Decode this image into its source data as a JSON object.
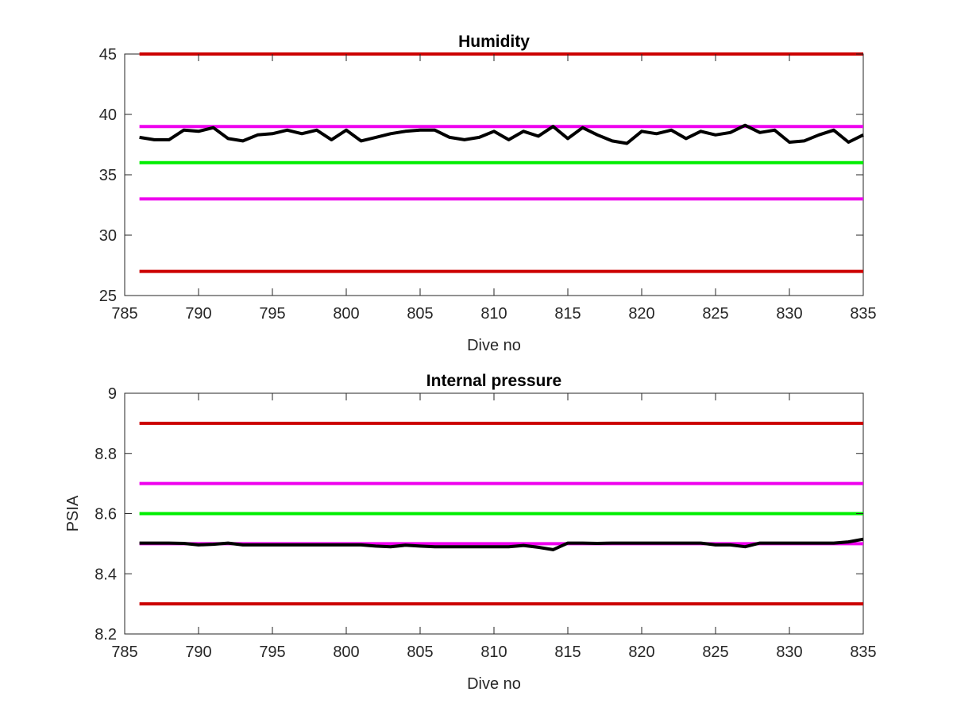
{
  "chart_data": [
    {
      "type": "line",
      "title": "Humidity",
      "xlabel": "Dive no",
      "ylabel": "",
      "xlim": [
        785,
        835
      ],
      "ylim": [
        25,
        45
      ],
      "xticks": [
        785,
        790,
        795,
        800,
        805,
        810,
        815,
        820,
        825,
        830,
        835
      ],
      "yticks": [
        25,
        30,
        35,
        40,
        45
      ],
      "grid": false,
      "threshold_lines": [
        {
          "y": 45,
          "color": "#cc0000",
          "x_range": [
            786,
            835
          ]
        },
        {
          "y": 39,
          "color": "#ee00ee",
          "x_range": [
            786,
            835
          ]
        },
        {
          "y": 36,
          "color": "#00ee00",
          "x_range": [
            786,
            835
          ]
        },
        {
          "y": 33,
          "color": "#ee00ee",
          "x_range": [
            786,
            835
          ]
        },
        {
          "y": 27,
          "color": "#cc0000",
          "x_range": [
            786,
            835
          ]
        }
      ],
      "series": [
        {
          "color": "#000000",
          "x": [
            786,
            787,
            788,
            789,
            790,
            791,
            792,
            793,
            794,
            795,
            796,
            797,
            798,
            799,
            800,
            801,
            802,
            803,
            804,
            805,
            806,
            807,
            808,
            809,
            810,
            811,
            812,
            813,
            814,
            815,
            816,
            817,
            818,
            819,
            820,
            821,
            822,
            823,
            824,
            825,
            826,
            827,
            828,
            829,
            830,
            831,
            832,
            833,
            834,
            835
          ],
          "values": [
            38.1,
            37.9,
            37.9,
            38.7,
            38.6,
            38.9,
            38.0,
            37.8,
            38.3,
            38.4,
            38.7,
            38.4,
            38.7,
            37.9,
            38.7,
            37.8,
            38.1,
            38.4,
            38.6,
            38.7,
            38.7,
            38.1,
            37.9,
            38.1,
            38.6,
            37.9,
            38.6,
            38.2,
            39.0,
            38.0,
            38.9,
            38.3,
            37.8,
            37.6,
            38.6,
            38.4,
            38.7,
            38.0,
            38.6,
            38.3,
            38.5,
            39.1,
            38.5,
            38.7,
            37.7,
            37.8,
            38.3,
            38.7,
            37.7,
            38.3
          ]
        }
      ]
    },
    {
      "type": "line",
      "title": "Internal pressure",
      "xlabel": "Dive no",
      "ylabel": "PSIA",
      "xlim": [
        785,
        835
      ],
      "ylim": [
        8.2,
        9
      ],
      "xticks": [
        785,
        790,
        795,
        800,
        805,
        810,
        815,
        820,
        825,
        830,
        835
      ],
      "yticks": [
        8.2,
        8.4,
        8.6,
        8.8,
        9
      ],
      "grid": false,
      "threshold_lines": [
        {
          "y": 8.9,
          "color": "#cc0000",
          "x_range": [
            786,
            835
          ]
        },
        {
          "y": 8.7,
          "color": "#ee00ee",
          "x_range": [
            786,
            835
          ]
        },
        {
          "y": 8.6,
          "color": "#00ee00",
          "x_range": [
            786,
            835
          ]
        },
        {
          "y": 8.5,
          "color": "#ee00ee",
          "x_range": [
            786,
            835
          ]
        },
        {
          "y": 8.3,
          "color": "#cc0000",
          "x_range": [
            786,
            835
          ]
        }
      ],
      "series": [
        {
          "color": "#000000",
          "x": [
            786,
            787,
            788,
            789,
            790,
            791,
            792,
            793,
            794,
            795,
            796,
            797,
            798,
            799,
            800,
            801,
            802,
            803,
            804,
            805,
            806,
            807,
            808,
            809,
            810,
            811,
            812,
            813,
            814,
            815,
            816,
            817,
            818,
            819,
            820,
            821,
            822,
            823,
            824,
            825,
            826,
            827,
            828,
            829,
            830,
            831,
            832,
            833,
            834,
            835
          ],
          "values": [
            8.502,
            8.502,
            8.502,
            8.501,
            8.496,
            8.498,
            8.502,
            8.496,
            8.496,
            8.496,
            8.496,
            8.496,
            8.496,
            8.496,
            8.496,
            8.496,
            8.492,
            8.49,
            8.495,
            8.492,
            8.49,
            8.49,
            8.49,
            8.49,
            8.49,
            8.49,
            8.494,
            8.488,
            8.48,
            8.502,
            8.502,
            8.501,
            8.502,
            8.502,
            8.502,
            8.502,
            8.502,
            8.502,
            8.502,
            8.496,
            8.496,
            8.49,
            8.502,
            8.502,
            8.502,
            8.502,
            8.502,
            8.502,
            8.506,
            8.515
          ]
        }
      ]
    }
  ]
}
